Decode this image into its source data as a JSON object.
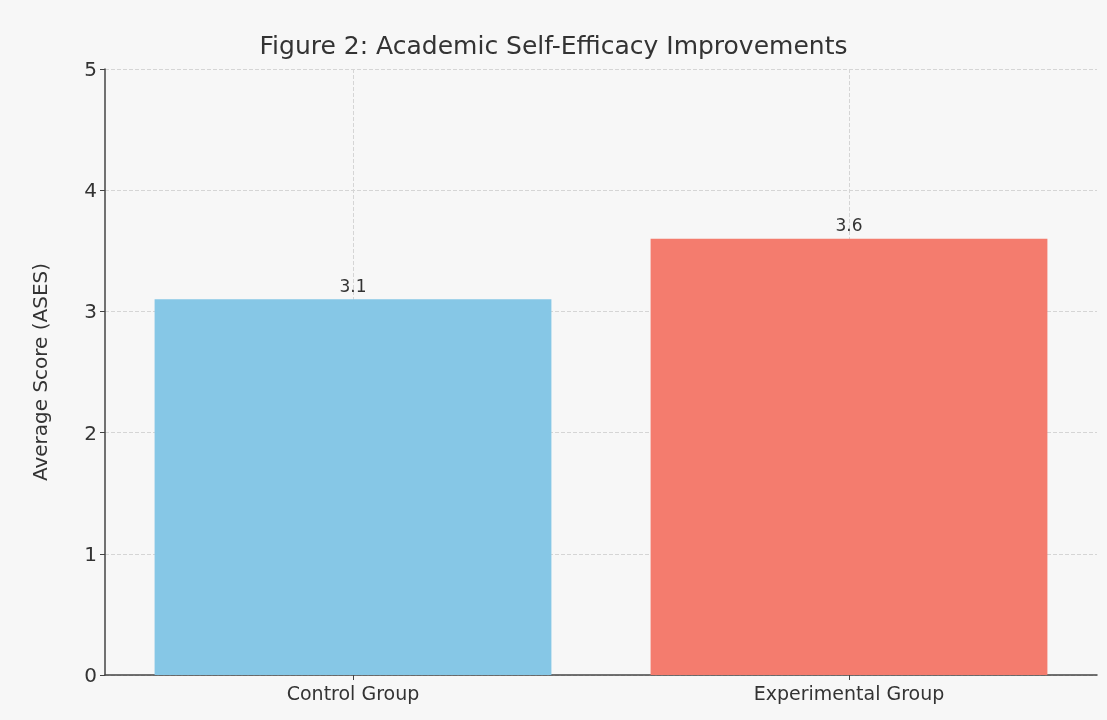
{
  "chart_data": {
    "type": "bar",
    "title": "Figure 2: Academic Self-Efficacy Improvements",
    "ylabel": "Average Score (ASES)",
    "categories": [
      "Control Group",
      "Experimental Group"
    ],
    "values": [
      3.1,
      3.6
    ],
    "colors": [
      "#86c7e6",
      "#f47c6e"
    ],
    "ylim": [
      0,
      5
    ],
    "yticks": [
      0,
      1,
      2,
      3,
      4,
      5
    ],
    "grid": true,
    "data_labels": true
  }
}
